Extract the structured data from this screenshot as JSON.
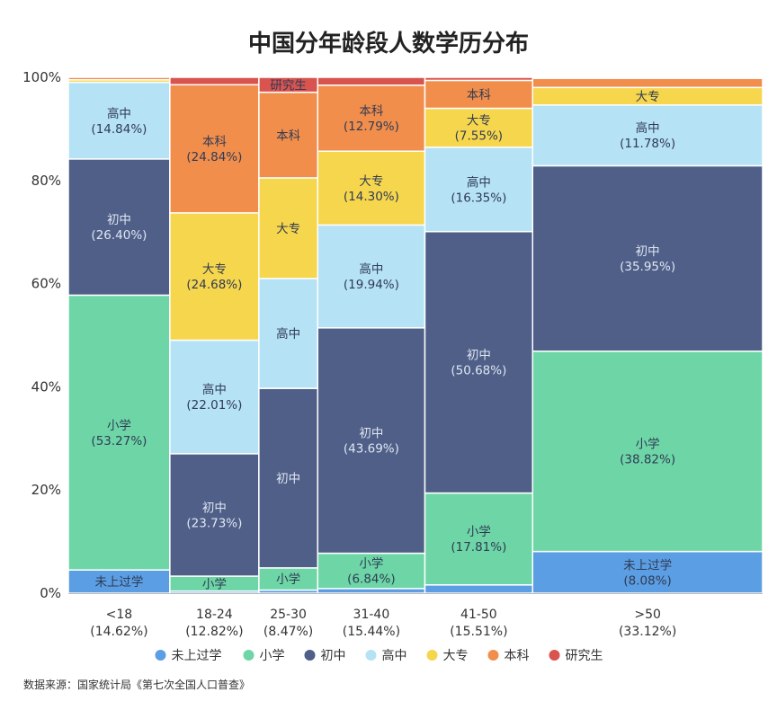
{
  "chart_data": {
    "type": "bar",
    "subtype": "mekko",
    "title": "中国分年龄段人数学历分布",
    "source": "数据来源：国家统计局《第七次全国人口普查》",
    "yticks": [
      "0%",
      "20%",
      "40%",
      "60%",
      "80%",
      "100%"
    ],
    "ylim": [
      0,
      100
    ],
    "grid": false,
    "legend_position": "bottom",
    "series_names": [
      "未上过学",
      "小学",
      "初中",
      "高中",
      "大专",
      "本科",
      "研究生"
    ],
    "colors": [
      "#5b9ee3",
      "#6ed6a6",
      "#4f5f88",
      "#b6e2f6",
      "#f6d64c",
      "#f28e4c",
      "#d9534f"
    ],
    "categories": [
      {
        "label": "<18",
        "share_label": "(14.62%)",
        "width_share": 14.62,
        "values": [
          4.5,
          53.27,
          26.4,
          14.84,
          0.5,
          0.49,
          0
        ],
        "labels": [
          "未上过学",
          "小学\n(53.27%)",
          "初中\n(26.40%)",
          "高中\n(14.84%)",
          "",
          "",
          ""
        ]
      },
      {
        "label": "18-24",
        "share_label": "(12.82%)",
        "width_share": 12.82,
        "values": [
          0.4,
          2.9,
          23.73,
          22.01,
          24.68,
          24.84,
          1.44
        ],
        "labels": [
          "",
          "小学",
          "初中\n(23.73%)",
          "高中\n(22.01%)",
          "大专\n(24.68%)",
          "本科\n(24.84%)",
          ""
        ]
      },
      {
        "label": "25-30",
        "share_label": "(8.47%)",
        "width_share": 8.47,
        "values": [
          0.6,
          4.3,
          34.8,
          21.3,
          19.5,
          16.6,
          2.9
        ],
        "labels": [
          "",
          "小学",
          "初中",
          "高中",
          "大专",
          "本科",
          "研究生"
        ]
      },
      {
        "label": "31-40",
        "share_label": "(15.44%)",
        "width_share": 15.44,
        "values": [
          0.9,
          6.84,
          43.69,
          19.94,
          14.3,
          12.79,
          1.54
        ],
        "labels": [
          "",
          "小学\n(6.84%)",
          "初中\n(43.69%)",
          "高中\n(19.94%)",
          "大专\n(14.30%)",
          "本科\n(12.79%)",
          ""
        ]
      },
      {
        "label": "41-50",
        "share_label": "(15.51%)",
        "width_share": 15.51,
        "values": [
          1.6,
          17.81,
          50.68,
          16.35,
          7.55,
          5.41,
          0.6
        ],
        "labels": [
          "",
          "小学\n(17.81%)",
          "初中\n(50.68%)",
          "高中\n(16.35%)",
          "大专\n(7.55%)",
          "本科",
          ""
        ]
      },
      {
        "label": ">50",
        "share_label": "(33.12%)",
        "width_share": 33.12,
        "values": [
          8.08,
          38.82,
          35.95,
          11.78,
          3.4,
          1.77,
          0.2
        ],
        "labels": [
          "未上过学\n(8.08%)",
          "小学\n(38.82%)",
          "初中\n(35.95%)",
          "高中\n(11.78%)",
          "大专",
          "",
          ""
        ]
      }
    ]
  }
}
